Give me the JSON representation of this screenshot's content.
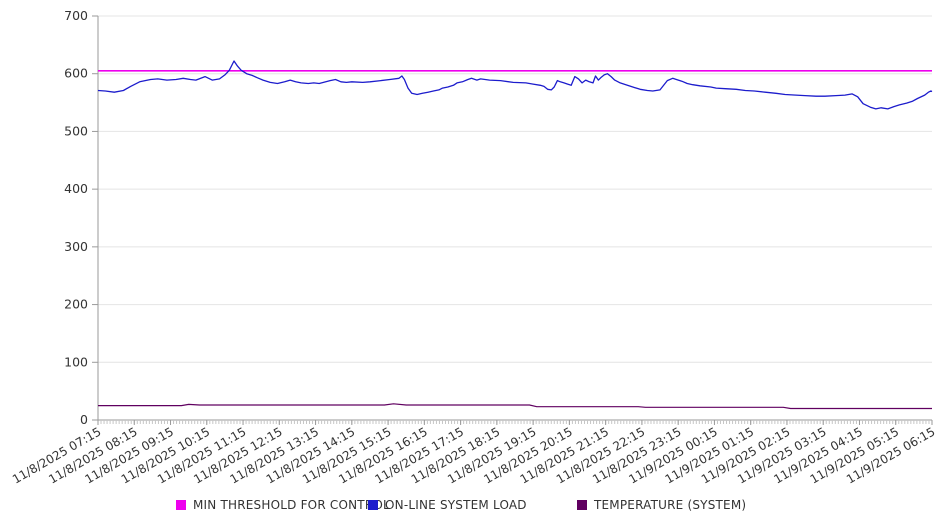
{
  "chart_data": {
    "type": "line",
    "title": "",
    "x_labels": [
      "11/8/2025 07:15",
      "11/8/2025 08:15",
      "11/8/2025 09:15",
      "11/8/2025 10:15",
      "11/8/2025 11:15",
      "11/8/2025 12:15",
      "11/8/2025 13:15",
      "11/8/2025 14:15",
      "11/8/2025 15:15",
      "11/8/2025 16:15",
      "11/8/2025 17:15",
      "11/8/2025 18:15",
      "11/8/2025 19:15",
      "11/8/2025 20:15",
      "11/8/2025 21:15",
      "11/8/2025 22:15",
      "11/8/2025 23:15",
      "11/9/2025 00:15",
      "11/9/2025 01:15",
      "11/9/2025 02:15",
      "11/9/2025 03:15",
      "11/9/2025 04:15",
      "11/9/2025 05:15",
      "11/9/2025 06:15"
    ],
    "x_hours_span": 23,
    "x_minor_tick_minutes": 5,
    "y_axis": {
      "min": 0,
      "max": 700,
      "ticks": [
        0,
        100,
        200,
        300,
        400,
        500,
        600,
        700
      ]
    },
    "grid": "horizontal",
    "legend_position": "bottom",
    "series": [
      {
        "name": "MIN THRESHOLD FOR CONTROL",
        "color": "#ee00ee",
        "points": [
          [
            0,
            605
          ],
          [
            23,
            605
          ]
        ]
      },
      {
        "name": "ON-LINE SYSTEM LOAD",
        "color": "#1c1ccc",
        "points": [
          [
            0,
            571
          ],
          [
            0.2,
            570
          ],
          [
            0.45,
            568
          ],
          [
            0.7,
            571
          ],
          [
            0.9,
            578
          ],
          [
            1.15,
            586
          ],
          [
            1.45,
            590
          ],
          [
            1.65,
            591
          ],
          [
            1.9,
            589
          ],
          [
            2.15,
            590
          ],
          [
            2.35,
            592
          ],
          [
            2.55,
            590
          ],
          [
            2.7,
            589
          ],
          [
            2.95,
            595
          ],
          [
            3.15,
            589
          ],
          [
            3.35,
            591
          ],
          [
            3.5,
            598
          ],
          [
            3.62,
            606
          ],
          [
            3.75,
            622
          ],
          [
            3.85,
            613
          ],
          [
            3.95,
            606
          ],
          [
            4.1,
            600
          ],
          [
            4.25,
            597
          ],
          [
            4.4,
            593
          ],
          [
            4.55,
            589
          ],
          [
            4.75,
            585
          ],
          [
            4.95,
            583
          ],
          [
            5.15,
            586
          ],
          [
            5.3,
            589
          ],
          [
            5.45,
            586
          ],
          [
            5.6,
            584
          ],
          [
            5.8,
            583
          ],
          [
            5.95,
            584
          ],
          [
            6.1,
            583
          ],
          [
            6.4,
            588
          ],
          [
            6.55,
            590
          ],
          [
            6.7,
            586
          ],
          [
            6.85,
            585
          ],
          [
            7,
            586
          ],
          [
            7.3,
            585
          ],
          [
            7.5,
            586
          ],
          [
            7.8,
            588
          ],
          [
            8.05,
            590
          ],
          [
            8.3,
            592
          ],
          [
            8.38,
            596
          ],
          [
            8.45,
            590
          ],
          [
            8.55,
            575
          ],
          [
            8.65,
            566
          ],
          [
            8.8,
            564
          ],
          [
            8.95,
            566
          ],
          [
            9.1,
            568
          ],
          [
            9.25,
            570
          ],
          [
            9.4,
            572
          ],
          [
            9.5,
            575
          ],
          [
            9.65,
            577
          ],
          [
            9.8,
            580
          ],
          [
            9.9,
            584
          ],
          [
            10.05,
            586
          ],
          [
            10.2,
            590
          ],
          [
            10.3,
            592
          ],
          [
            10.45,
            589
          ],
          [
            10.55,
            591
          ],
          [
            10.8,
            589
          ],
          [
            11.1,
            588
          ],
          [
            11.45,
            585
          ],
          [
            11.8,
            584
          ],
          [
            12,
            582
          ],
          [
            12.2,
            580
          ],
          [
            12.3,
            578
          ],
          [
            12.4,
            573
          ],
          [
            12.5,
            572
          ],
          [
            12.58,
            577
          ],
          [
            12.67,
            588
          ],
          [
            12.75,
            586
          ],
          [
            12.85,
            584
          ],
          [
            12.95,
            582
          ],
          [
            13.05,
            580
          ],
          [
            13.15,
            595
          ],
          [
            13.25,
            591
          ],
          [
            13.35,
            584
          ],
          [
            13.45,
            589
          ],
          [
            13.55,
            586
          ],
          [
            13.65,
            584
          ],
          [
            13.72,
            596
          ],
          [
            13.8,
            589
          ],
          [
            13.88,
            594
          ],
          [
            13.96,
            598
          ],
          [
            14.05,
            600
          ],
          [
            14.15,
            595
          ],
          [
            14.25,
            589
          ],
          [
            14.4,
            584
          ],
          [
            14.6,
            580
          ],
          [
            14.75,
            577
          ],
          [
            14.95,
            573
          ],
          [
            15.15,
            571
          ],
          [
            15.3,
            570
          ],
          [
            15.5,
            572
          ],
          [
            15.7,
            588
          ],
          [
            15.85,
            592
          ],
          [
            15.95,
            590
          ],
          [
            16.1,
            587
          ],
          [
            16.25,
            583
          ],
          [
            16.4,
            581
          ],
          [
            16.6,
            579
          ],
          [
            16.9,
            577
          ],
          [
            17.05,
            575
          ],
          [
            17.3,
            574
          ],
          [
            17.6,
            573
          ],
          [
            17.85,
            571
          ],
          [
            18.1,
            570
          ],
          [
            18.4,
            568
          ],
          [
            18.7,
            566
          ],
          [
            18.95,
            564
          ],
          [
            19.25,
            563
          ],
          [
            19.5,
            562
          ],
          [
            19.8,
            561
          ],
          [
            20.05,
            561
          ],
          [
            20.35,
            562
          ],
          [
            20.6,
            563
          ],
          [
            20.8,
            565
          ],
          [
            20.95,
            560
          ],
          [
            21.1,
            548
          ],
          [
            21.3,
            542
          ],
          [
            21.45,
            539
          ],
          [
            21.6,
            541
          ],
          [
            21.78,
            539
          ],
          [
            21.95,
            543
          ],
          [
            22.1,
            546
          ],
          [
            22.3,
            549
          ],
          [
            22.45,
            552
          ],
          [
            22.6,
            557
          ],
          [
            22.8,
            563
          ],
          [
            22.9,
            568
          ],
          [
            22.97,
            570
          ],
          [
            23,
            569
          ]
        ]
      },
      {
        "name": "TEMPERATURE (SYSTEM)",
        "color": "#600060",
        "points": [
          [
            0,
            25
          ],
          [
            2.3,
            25
          ],
          [
            2.5,
            27
          ],
          [
            2.8,
            26
          ],
          [
            7.9,
            26
          ],
          [
            8.15,
            28
          ],
          [
            8.5,
            26
          ],
          [
            11.9,
            26
          ],
          [
            12.1,
            23
          ],
          [
            14.9,
            23
          ],
          [
            15.1,
            22
          ],
          [
            18.9,
            22
          ],
          [
            19.1,
            20
          ],
          [
            23,
            20
          ]
        ]
      }
    ]
  }
}
